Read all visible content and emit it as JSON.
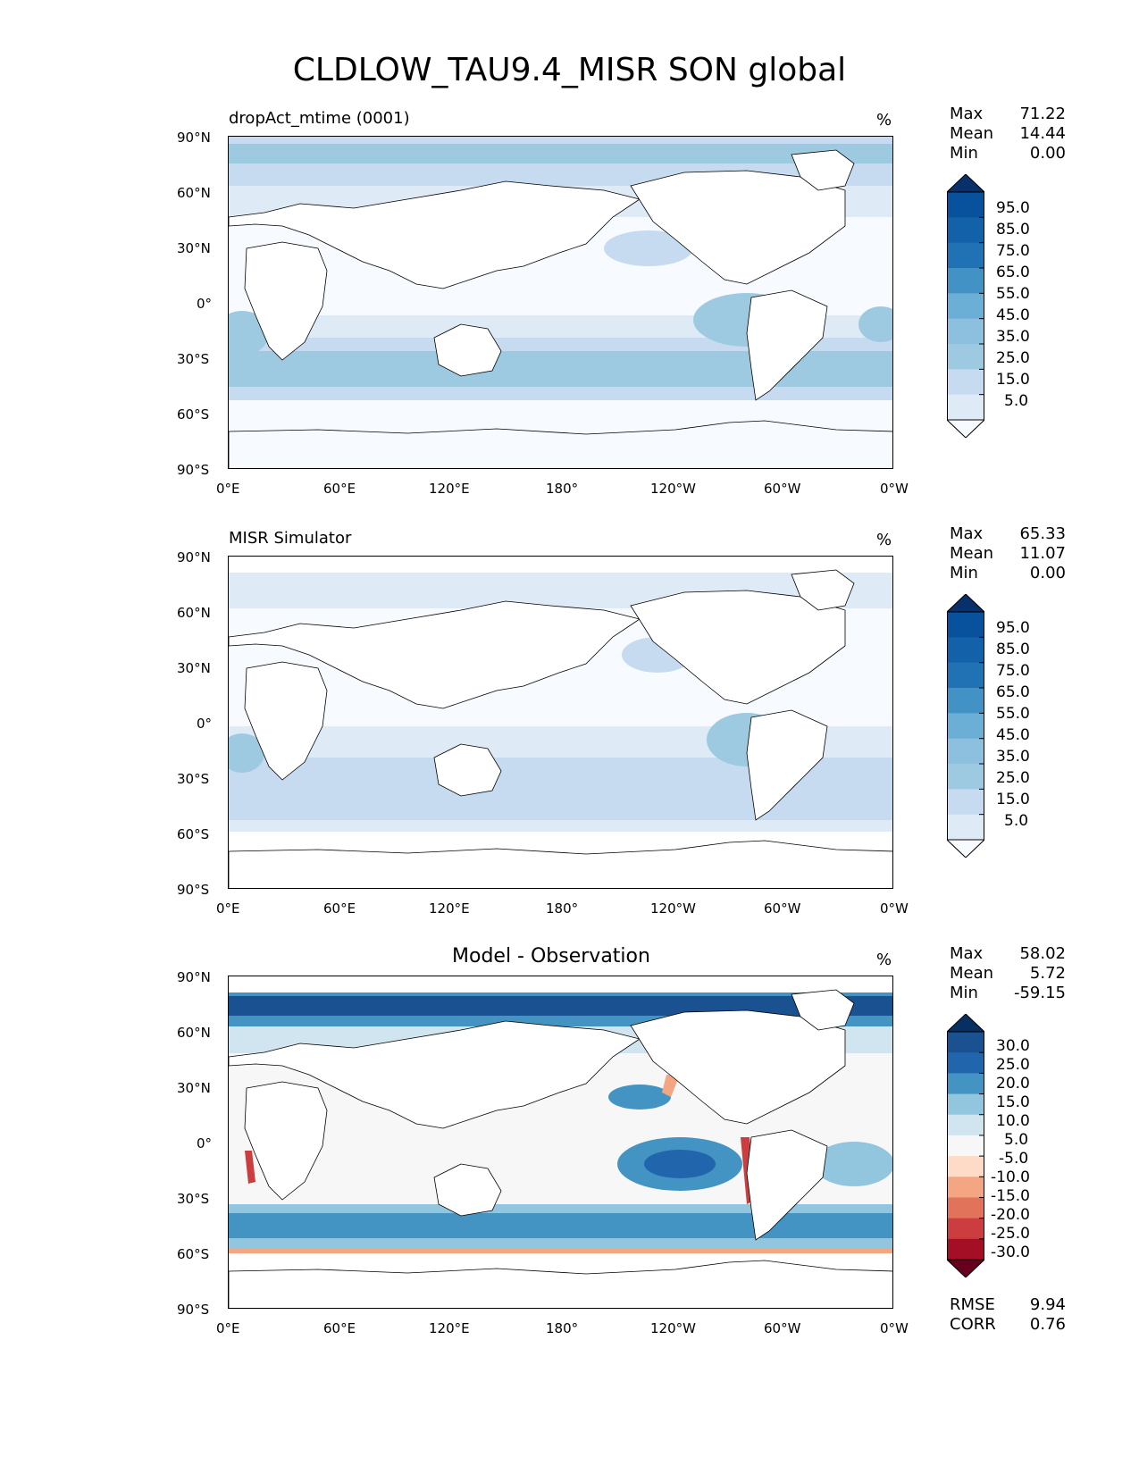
{
  "title": "CLDLOW_TAU9.4_MISR SON global",
  "lat_ticks": [
    "90°N",
    "60°N",
    "30°N",
    "0°",
    "30°S",
    "60°S",
    "90°S"
  ],
  "lon_ticks": [
    "0°E",
    "60°E",
    "120°E",
    "180°",
    "120°W",
    "60°W",
    "0°W"
  ],
  "colors": {
    "seq_blues": [
      "#f7fbff",
      "#deebf7",
      "#c6dbef",
      "#9ecae1",
      "#8cc0de",
      "#6baed6",
      "#4292c6",
      "#2171b5",
      "#1361a9",
      "#08519c",
      "#08306b"
    ],
    "diverging": [
      "#67001f",
      "#a50f26",
      "#cb3d3e",
      "#e0735a",
      "#f4a582",
      "#fddbc7",
      "#f7f7f7",
      "#d1e5f0",
      "#92c5de",
      "#4393c3",
      "#2166ac",
      "#1a5291",
      "#053061"
    ]
  },
  "chart_data": [
    {
      "type": "heatmap",
      "title": "dropAct_mtime (0001)",
      "units": "%",
      "stats": {
        "max_label": "Max",
        "max": "71.22",
        "mean_label": "Mean",
        "mean": "14.44",
        "min_label": "Min",
        "min": "0.00"
      },
      "colorbar_levels": [
        "95.0",
        "85.0",
        "75.0",
        "65.0",
        "55.0",
        "45.0",
        "35.0",
        "25.0",
        "15.0",
        "5.0"
      ],
      "xlim": [
        0,
        360
      ],
      "ylim": [
        -90,
        90
      ]
    },
    {
      "type": "heatmap",
      "title": "MISR Simulator",
      "units": "%",
      "stats": {
        "max_label": "Max",
        "max": "65.33",
        "mean_label": "Mean",
        "mean": "11.07",
        "min_label": "Min",
        "min": "0.00"
      },
      "colorbar_levels": [
        "95.0",
        "85.0",
        "75.0",
        "65.0",
        "55.0",
        "45.0",
        "35.0",
        "25.0",
        "15.0",
        "5.0"
      ],
      "xlim": [
        0,
        360
      ],
      "ylim": [
        -90,
        90
      ]
    },
    {
      "type": "heatmap",
      "title": "Model - Observation",
      "units": "%",
      "stats": {
        "max_label": "Max",
        "max": "58.02",
        "mean_label": "Mean",
        "mean": "5.72",
        "min_label": "Min",
        "min": "-59.15"
      },
      "colorbar_levels": [
        "30.0",
        "25.0",
        "20.0",
        "15.0",
        "10.0",
        "5.0",
        "-5.0",
        "-10.0",
        "-15.0",
        "-20.0",
        "-25.0",
        "-30.0"
      ],
      "metrics": {
        "rmse_label": "RMSE",
        "rmse": "9.94",
        "corr_label": "CORR",
        "corr": "0.76"
      },
      "xlim": [
        0,
        360
      ],
      "ylim": [
        -90,
        90
      ]
    }
  ]
}
